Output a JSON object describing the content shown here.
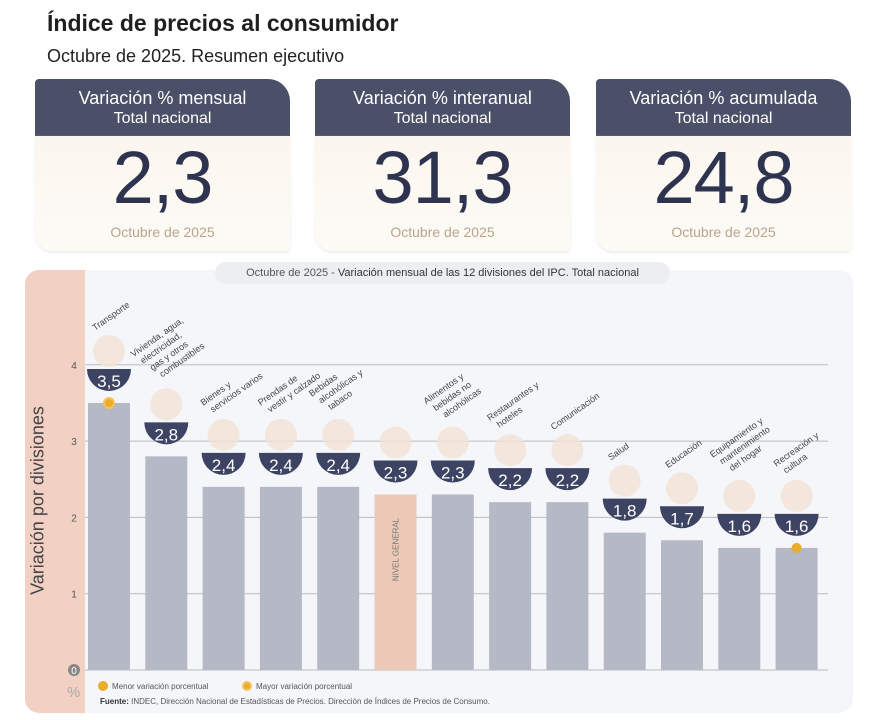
{
  "header": {
    "title": "Índice de precios al consumidor",
    "subtitle": "Octubre de 2025. Resumen ejecutivo"
  },
  "cards": [
    {
      "title": "Variación % mensual",
      "scope": "Total nacional",
      "value": "2,3",
      "period": "Octubre de 2025"
    },
    {
      "title": "Variación % interanual",
      "scope": "Total nacional",
      "value": "31,3",
      "period": "Octubre de 2025"
    },
    {
      "title": "Variación % acumulada",
      "scope": "Total nacional",
      "value": "24,8",
      "period": "Octubre de 2025"
    }
  ],
  "chart_data": {
    "type": "bar",
    "title_period": "Octubre de 2025",
    "title": "Variación mensual de las 12 divisiones del IPC. Total nacional",
    "ylabel": "Variación por divisiones",
    "yunit": "%",
    "ylim": [
      0,
      4.3
    ],
    "yticks": [
      0,
      1,
      2,
      3,
      4
    ],
    "grid": true,
    "categories": [
      "Transporte",
      "Vivienda, agua, electricidad, gas y otros combustibles",
      "Bienes y servicios varios",
      "Prendas de vestir y calzado",
      "Bebidas alcohólicas y tabaco",
      "NIVEL GENERAL",
      "Alimentos y bebidas no alcohólicas",
      "Restaurantes y hoteles",
      "Comunicación",
      "Salud",
      "Educación",
      "Equipamiento y mantenimiento del hogar",
      "Recreación y cultura"
    ],
    "values": [
      3.5,
      2.8,
      2.4,
      2.4,
      2.4,
      2.3,
      2.3,
      2.2,
      2.2,
      1.8,
      1.7,
      1.6,
      1.6
    ],
    "value_labels": [
      "3,5",
      "2,8",
      "2,4",
      "2,4",
      "2,4",
      "2,3",
      "2,3",
      "2,2",
      "2,2",
      "1,8",
      "1,7",
      "1,6",
      "1,6"
    ],
    "highlight": {
      "max": "Transporte",
      "min": "Recreación y cultura"
    },
    "colors": {
      "bar": "#b4b9c5",
      "general": "#ecc8b6",
      "badge": "#3d4463",
      "marker": "#e9ad2a"
    },
    "legend": [
      "Menor variación porcentual",
      "Mayor variación porcentual"
    ],
    "legend_placement": "bottom-left",
    "source_label": "Fuente:",
    "source": "INDEC, Dirección Nacional de Estadísticas de Precios. Dirección de Índices de Precios de Consumo."
  }
}
